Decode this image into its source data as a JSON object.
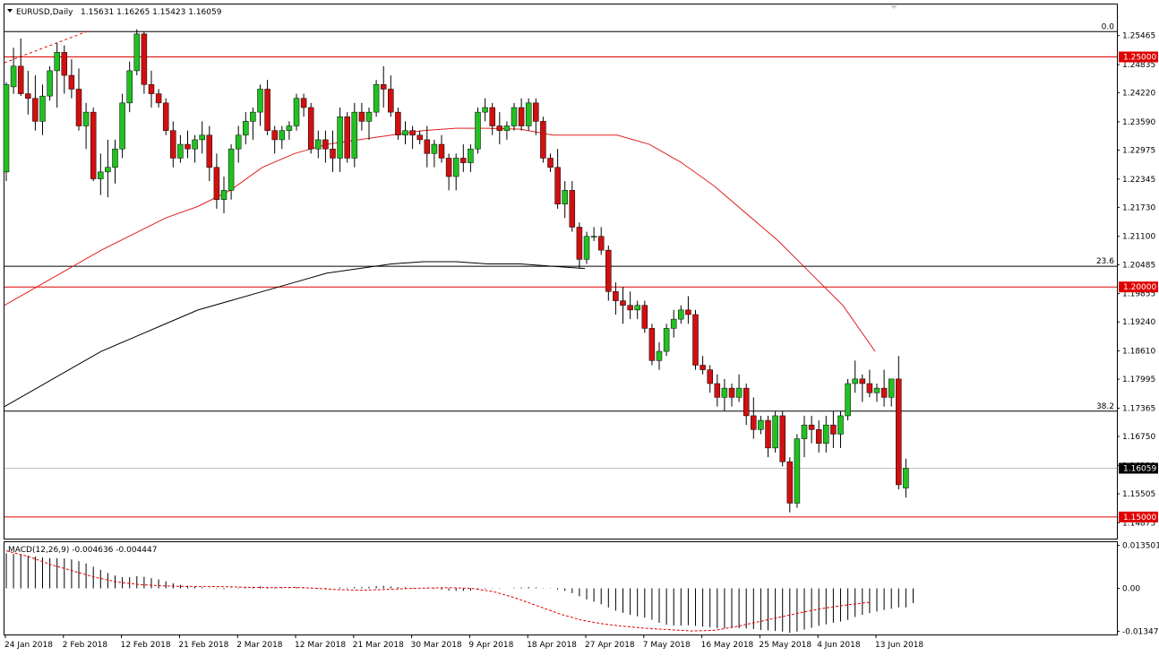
{
  "header": {
    "dropdown_icon": "triangle-down-icon",
    "symbol": "EURUSD,Daily",
    "ohlc": "1.15631 1.16265 1.15423 1.16059"
  },
  "colors": {
    "bull": "#22c022",
    "bear": "#d01010",
    "ma_fast": "#e02020",
    "ma_slow": "#000000",
    "level_red": "#e00000",
    "price_tag_bg": "#000000"
  },
  "chart_data": {
    "type": "candlestick",
    "symbol": "EURUSD",
    "timeframe": "Daily",
    "price_axis": {
      "ticks": [
        "1.25465",
        "1.24835",
        "1.24220",
        "1.23590",
        "1.22975",
        "1.22345",
        "1.21730",
        "1.21100",
        "1.20485",
        "1.19855",
        "1.19240",
        "1.18610",
        "1.17995",
        "1.17365",
        "1.16750",
        "1.16120",
        "1.15505",
        "1.14875"
      ],
      "range": [
        1.1453,
        1.2614
      ]
    },
    "date_axis": {
      "labels": [
        "24 Jan 2018",
        "2 Feb 2018",
        "12 Feb 2018",
        "21 Feb 2018",
        "2 Mar 2018",
        "12 Mar 2018",
        "21 Mar 2018",
        "30 Mar 2018",
        "9 Apr 2018",
        "18 Apr 2018",
        "27 Apr 2018",
        "7 May 2018",
        "16 May 2018",
        "25 May 2018",
        "4 Jun 2018",
        "13 Jun 2018"
      ]
    },
    "candles": [
      [
        1.225,
        1.2445,
        1.223,
        1.244
      ],
      [
        1.2435,
        1.252,
        1.242,
        1.248
      ],
      [
        1.248,
        1.254,
        1.2415,
        1.242
      ],
      [
        1.242,
        1.247,
        1.2375,
        1.241
      ],
      [
        1.241,
        1.246,
        1.234,
        1.236
      ],
      [
        1.236,
        1.244,
        1.233,
        1.2415
      ],
      [
        1.2415,
        1.248,
        1.2405,
        1.247
      ],
      [
        1.247,
        1.253,
        1.239,
        1.251
      ],
      [
        1.251,
        1.2525,
        1.242,
        1.246
      ],
      [
        1.246,
        1.2495,
        1.241,
        1.243
      ],
      [
        1.243,
        1.2475,
        1.234,
        1.235
      ],
      [
        1.235,
        1.24,
        1.23,
        1.238
      ],
      [
        1.238,
        1.239,
        1.223,
        1.2235
      ],
      [
        1.2235,
        1.229,
        1.22,
        1.225
      ],
      [
        1.225,
        1.232,
        1.2195,
        1.226
      ],
      [
        1.226,
        1.232,
        1.2225,
        1.23
      ],
      [
        1.23,
        1.242,
        1.228,
        1.24
      ],
      [
        1.24,
        1.249,
        1.238,
        1.247
      ],
      [
        1.247,
        1.256,
        1.246,
        1.255
      ],
      [
        1.255,
        1.2555,
        1.242,
        1.244
      ],
      [
        1.244,
        1.247,
        1.239,
        1.242
      ],
      [
        1.242,
        1.243,
        1.239,
        1.24
      ],
      [
        1.24,
        1.241,
        1.233,
        1.234
      ],
      [
        1.234,
        1.236,
        1.226,
        1.228
      ],
      [
        1.228,
        1.233,
        1.227,
        1.231
      ],
      [
        1.231,
        1.234,
        1.228,
        1.23
      ],
      [
        1.23,
        1.233,
        1.227,
        1.232
      ],
      [
        1.232,
        1.236,
        1.229,
        1.233
      ],
      [
        1.233,
        1.235,
        1.223,
        1.226
      ],
      [
        1.226,
        1.229,
        1.217,
        1.219
      ],
      [
        1.219,
        1.224,
        1.216,
        1.221
      ],
      [
        1.221,
        1.231,
        1.219,
        1.23
      ],
      [
        1.23,
        1.235,
        1.227,
        1.233
      ],
      [
        1.233,
        1.238,
        1.231,
        1.236
      ],
      [
        1.236,
        1.239,
        1.232,
        1.238
      ],
      [
        1.238,
        1.244,
        1.235,
        1.243
      ],
      [
        1.243,
        1.245,
        1.233,
        1.234
      ],
      [
        1.234,
        1.235,
        1.229,
        1.232
      ],
      [
        1.232,
        1.235,
        1.23,
        1.234
      ],
      [
        1.234,
        1.236,
        1.232,
        1.235
      ],
      [
        1.235,
        1.242,
        1.234,
        1.241
      ],
      [
        1.241,
        1.242,
        1.237,
        1.239
      ],
      [
        1.239,
        1.24,
        1.229,
        1.23
      ],
      [
        1.23,
        1.234,
        1.228,
        1.232
      ],
      [
        1.232,
        1.234,
        1.227,
        1.23
      ],
      [
        1.23,
        1.234,
        1.225,
        1.228
      ],
      [
        1.228,
        1.239,
        1.225,
        1.237
      ],
      [
        1.237,
        1.238,
        1.227,
        1.228
      ],
      [
        1.228,
        1.24,
        1.226,
        1.238
      ],
      [
        1.238,
        1.24,
        1.234,
        1.236
      ],
      [
        1.236,
        1.239,
        1.232,
        1.238
      ],
      [
        1.238,
        1.245,
        1.237,
        1.244
      ],
      [
        1.244,
        1.248,
        1.239,
        1.243
      ],
      [
        1.243,
        1.246,
        1.237,
        1.238
      ],
      [
        1.238,
        1.239,
        1.232,
        1.233
      ],
      [
        1.233,
        1.236,
        1.231,
        1.234
      ],
      [
        1.234,
        1.235,
        1.23,
        1.233
      ],
      [
        1.233,
        1.234,
        1.231,
        1.232
      ],
      [
        1.232,
        1.235,
        1.226,
        1.229
      ],
      [
        1.229,
        1.232,
        1.226,
        1.231
      ],
      [
        1.231,
        1.233,
        1.227,
        1.228
      ],
      [
        1.228,
        1.229,
        1.221,
        1.224
      ],
      [
        1.224,
        1.229,
        1.221,
        1.228
      ],
      [
        1.228,
        1.231,
        1.225,
        1.227
      ],
      [
        1.227,
        1.231,
        1.225,
        1.23
      ],
      [
        1.23,
        1.239,
        1.229,
        1.238
      ],
      [
        1.238,
        1.241,
        1.236,
        1.239
      ],
      [
        1.239,
        1.24,
        1.233,
        1.235
      ],
      [
        1.235,
        1.238,
        1.231,
        1.234
      ],
      [
        1.234,
        1.236,
        1.232,
        1.235
      ],
      [
        1.235,
        1.24,
        1.234,
        1.239
      ],
      [
        1.239,
        1.241,
        1.234,
        1.235
      ],
      [
        1.235,
        1.241,
        1.234,
        1.24
      ],
      [
        1.24,
        1.241,
        1.233,
        1.236
      ],
      [
        1.236,
        1.237,
        1.227,
        1.228
      ],
      [
        1.228,
        1.229,
        1.225,
        1.226
      ],
      [
        1.226,
        1.23,
        1.217,
        1.218
      ],
      [
        1.218,
        1.223,
        1.215,
        1.221
      ],
      [
        1.221,
        1.223,
        1.212,
        1.213
      ],
      [
        1.213,
        1.214,
        1.204,
        1.206
      ],
      [
        1.206,
        1.212,
        1.205,
        1.211
      ],
      [
        1.211,
        1.213,
        1.21,
        1.211
      ],
      [
        1.211,
        1.213,
        1.207,
        1.208
      ],
      [
        1.208,
        1.209,
        1.197,
        1.199
      ],
      [
        1.199,
        1.201,
        1.194,
        1.197
      ],
      [
        1.197,
        1.2,
        1.192,
        1.196
      ],
      [
        1.196,
        1.199,
        1.193,
        1.195
      ],
      [
        1.195,
        1.197,
        1.193,
        1.196
      ],
      [
        1.196,
        1.197,
        1.19,
        1.191
      ],
      [
        1.191,
        1.192,
        1.183,
        1.184
      ],
      [
        1.184,
        1.188,
        1.182,
        1.186
      ],
      [
        1.186,
        1.192,
        1.185,
        1.191
      ],
      [
        1.191,
        1.195,
        1.189,
        1.193
      ],
      [
        1.193,
        1.196,
        1.192,
        1.195
      ],
      [
        1.195,
        1.198,
        1.192,
        1.194
      ],
      [
        1.194,
        1.195,
        1.182,
        1.183
      ],
      [
        1.183,
        1.185,
        1.181,
        1.182
      ],
      [
        1.182,
        1.183,
        1.177,
        1.179
      ],
      [
        1.179,
        1.181,
        1.174,
        1.176
      ],
      [
        1.176,
        1.18,
        1.173,
        1.178
      ],
      [
        1.178,
        1.179,
        1.174,
        1.176
      ],
      [
        1.176,
        1.181,
        1.175,
        1.178
      ],
      [
        1.178,
        1.179,
        1.17,
        1.172
      ],
      [
        1.172,
        1.176,
        1.167,
        1.169
      ],
      [
        1.169,
        1.172,
        1.168,
        1.171
      ],
      [
        1.171,
        1.172,
        1.163,
        1.165
      ],
      [
        1.165,
        1.173,
        1.164,
        1.172
      ],
      [
        1.172,
        1.173,
        1.161,
        1.162
      ],
      [
        1.162,
        1.163,
        1.151,
        1.153
      ],
      [
        1.153,
        1.168,
        1.152,
        1.167
      ],
      [
        1.167,
        1.172,
        1.163,
        1.17
      ],
      [
        1.17,
        1.172,
        1.166,
        1.169
      ],
      [
        1.169,
        1.171,
        1.164,
        1.166
      ],
      [
        1.166,
        1.172,
        1.164,
        1.17
      ],
      [
        1.17,
        1.173,
        1.165,
        1.168
      ],
      [
        1.168,
        1.173,
        1.165,
        1.172
      ],
      [
        1.172,
        1.18,
        1.171,
        1.179
      ],
      [
        1.179,
        1.184,
        1.177,
        1.18
      ],
      [
        1.18,
        1.181,
        1.175,
        1.179
      ],
      [
        1.179,
        1.182,
        1.176,
        1.177
      ],
      [
        1.177,
        1.179,
        1.175,
        1.178
      ],
      [
        1.178,
        1.182,
        1.174,
        1.176
      ],
      [
        1.176,
        1.18,
        1.174,
        1.18
      ],
      [
        1.18,
        1.185,
        1.156,
        1.157
      ],
      [
        1.1563,
        1.16265,
        1.15423,
        1.16059
      ]
    ],
    "moving_averages": [
      {
        "color": "#e02020",
        "values": [
          1.196,
          1.2,
          1.204,
          1.208,
          1.2115,
          1.215,
          1.2175,
          1.221,
          1.226,
          1.229,
          1.231,
          1.232,
          1.233,
          1.234,
          1.2345,
          1.2345,
          1.2343,
          1.233,
          1.233,
          1.233,
          1.231,
          1.227,
          1.222,
          1.216,
          1.21,
          1.203,
          1.196,
          1.186
        ]
      },
      {
        "color": "#000000",
        "values": [
          1.174,
          1.178,
          1.182,
          1.186,
          1.189,
          1.192,
          1.195,
          1.197,
          1.199,
          1.201,
          1.203,
          1.204,
          1.205,
          1.2055,
          1.2055,
          1.205,
          1.205,
          1.2045,
          1.204
        ]
      }
    ],
    "levels": [
      {
        "value": 1.25,
        "label": "1.25000",
        "color": "#e00000"
      },
      {
        "value": 1.2,
        "label": "1.20000",
        "color": "#e00000"
      },
      {
        "value": 1.15,
        "label": "1.15000",
        "color": "#e00000"
      }
    ],
    "fibonacci": [
      {
        "label": "0.0",
        "value": 1.2555
      },
      {
        "label": "23.6",
        "value": 1.2045
      },
      {
        "label": "38.2",
        "value": 1.173
      }
    ],
    "current_price": "1.16059",
    "macd": {
      "label": "MACD(12,26,9) -0.004636 -0.004447",
      "ticks": [
        "0.013501",
        "0.00",
        "-0.013479"
      ],
      "range": [
        -0.0145,
        0.0145
      ],
      "histogram": [
        0.011,
        0.0108,
        0.0106,
        0.0103,
        0.01,
        0.0097,
        0.0095,
        0.0095,
        0.0094,
        0.0091,
        0.0085,
        0.0078,
        0.0068,
        0.0058,
        0.0048,
        0.004,
        0.0035,
        0.0035,
        0.0038,
        0.0036,
        0.0032,
        0.0028,
        0.0022,
        0.0016,
        0.0011,
        0.0008,
        0.0005,
        0.0003,
        0.0001,
        -0.0002,
        -0.0003,
        -0.0001,
        0.0002,
        0.0004,
        0.0005,
        0.0006,
        0.0004,
        0.0003,
        0.0003,
        0.0003,
        0.0004,
        0.0004,
        0.0002,
        0.0001,
        0.0001,
        0.0,
        0.0003,
        0.0002,
        0.0004,
        0.0004,
        0.0005,
        0.0007,
        0.0008,
        0.0006,
        0.0004,
        0.0003,
        0.0002,
        0.0001,
        -0.0001,
        -0.0002,
        -0.0004,
        -0.0007,
        -0.0008,
        -0.0008,
        -0.0007,
        -0.0004,
        -0.0002,
        -0.0001,
        -0.0001,
        0.0,
        0.0002,
        0.0003,
        0.0004,
        0.0003,
        0.0001,
        -0.0001,
        -0.0004,
        -0.0008,
        -0.0015,
        -0.0025,
        -0.0035,
        -0.0042,
        -0.005,
        -0.006,
        -0.007,
        -0.0077,
        -0.0083,
        -0.0088,
        -0.0092,
        -0.0099,
        -0.0108,
        -0.0114,
        -0.0117,
        -0.0117,
        -0.0116,
        -0.0118,
        -0.012,
        -0.0122,
        -0.0125,
        -0.0125,
        -0.0125,
        -0.0125,
        -0.0126,
        -0.0128,
        -0.0131,
        -0.0132,
        -0.0134,
        -0.0136,
        -0.014,
        -0.0136,
        -0.013,
        -0.0124,
        -0.0118,
        -0.0113,
        -0.0108,
        -0.0104,
        -0.0099,
        -0.009,
        -0.0083,
        -0.0078,
        -0.0073,
        -0.0068,
        -0.0064,
        -0.006,
        -0.006,
        -0.0046
      ],
      "signal": [
        0.0118,
        0.01,
        0.0075,
        0.0055,
        0.0035,
        0.002,
        0.0012,
        0.0008,
        0.0006,
        0.0006,
        0.0005,
        0.0003,
        0.0002,
        0.0003,
        0.0,
        -0.0004,
        -0.0006,
        -0.0004,
        -0.0001,
        0.0001,
        0.0002,
        0.0,
        -0.001,
        -0.003,
        -0.0055,
        -0.008,
        -0.01,
        -0.0112,
        -0.012,
        -0.0126,
        -0.013,
        -0.0134,
        -0.0132,
        -0.012,
        -0.0105,
        -0.009,
        -0.0075,
        -0.0062,
        -0.0052,
        -0.0044
      ]
    }
  }
}
